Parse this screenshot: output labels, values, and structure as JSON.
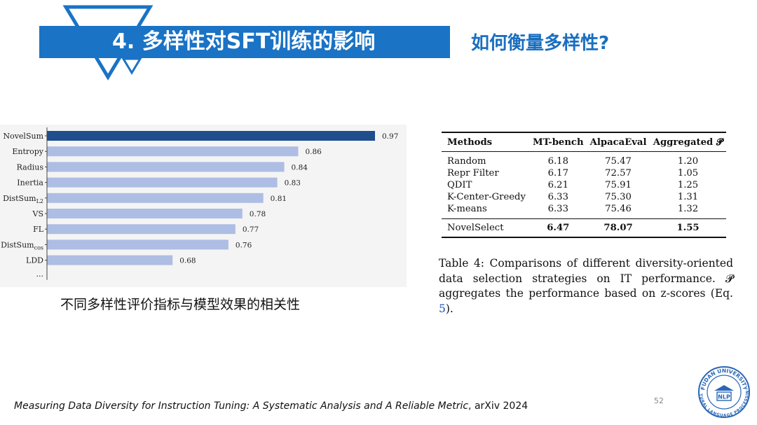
{
  "header": {
    "title": "4. 多样性对SFT训练的影响",
    "subtitle": "如何衡量多样性?",
    "colors": {
      "banner": "#1a73c5",
      "subtitle": "#1a6fc0"
    }
  },
  "chart_data": {
    "type": "bar",
    "orientation": "horizontal",
    "categories": [
      {
        "name": "NovelSum",
        "sub": ""
      },
      {
        "name": "Entropy",
        "sub": ""
      },
      {
        "name": "Radius",
        "sub": ""
      },
      {
        "name": "Inertia",
        "sub": ""
      },
      {
        "name": "DistSum",
        "sub": "L2"
      },
      {
        "name": "VS",
        "sub": ""
      },
      {
        "name": "FL",
        "sub": ""
      },
      {
        "name": "DistSum",
        "sub": "cos"
      },
      {
        "name": "LDD",
        "sub": ""
      }
    ],
    "values": [
      0.97,
      0.86,
      0.84,
      0.83,
      0.81,
      0.78,
      0.77,
      0.76,
      0.68
    ],
    "value_labels": [
      "0.97",
      "0.86",
      "0.84",
      "0.83",
      "0.81",
      "0.78",
      "0.77",
      "0.76",
      "0.68"
    ],
    "trailing_label": "...",
    "highlight_color": "#1f4e8c",
    "bar_color": "#aebde3",
    "xlim": [
      0.5,
      0.97
    ],
    "caption": "不同多样性评价指标与模型效果的相关性"
  },
  "table": {
    "headers": [
      "Methods",
      "MT-bench",
      "AlpacaEval",
      "Aggregated 𝓟"
    ],
    "rows": [
      [
        "Random",
        "6.18",
        "75.47",
        "1.20"
      ],
      [
        "Repr Filter",
        "6.17",
        "72.57",
        "1.05"
      ],
      [
        "QDIT",
        "6.21",
        "75.91",
        "1.25"
      ],
      [
        "K-Center-Greedy",
        "6.33",
        "75.30",
        "1.31"
      ],
      [
        "K-means",
        "6.33",
        "75.46",
        "1.32"
      ]
    ],
    "final_row": [
      "NovelSelect",
      "6.47",
      "78.07",
      "1.55"
    ],
    "caption_main": "Table 4: Comparisons of different diversity-oriented data selection strategies on IT performance. 𝓟 aggregates the performance based on z-scores (Eq. ",
    "caption_ref": "5",
    "caption_end": ")."
  },
  "footer": {
    "paper_title": "Measuring Data Diversity for Instruction Tuning: A Systematic Analysis and A Reliable Metric",
    "venue": ", arXiv 2024",
    "page_number": "52"
  },
  "logo": {
    "top_text": "FUDAN UNIVERSITY",
    "bottom_text": "NATURAL LANGUAGE PROCESSING",
    "center_text": "NLP",
    "color": "#2a67b8"
  }
}
